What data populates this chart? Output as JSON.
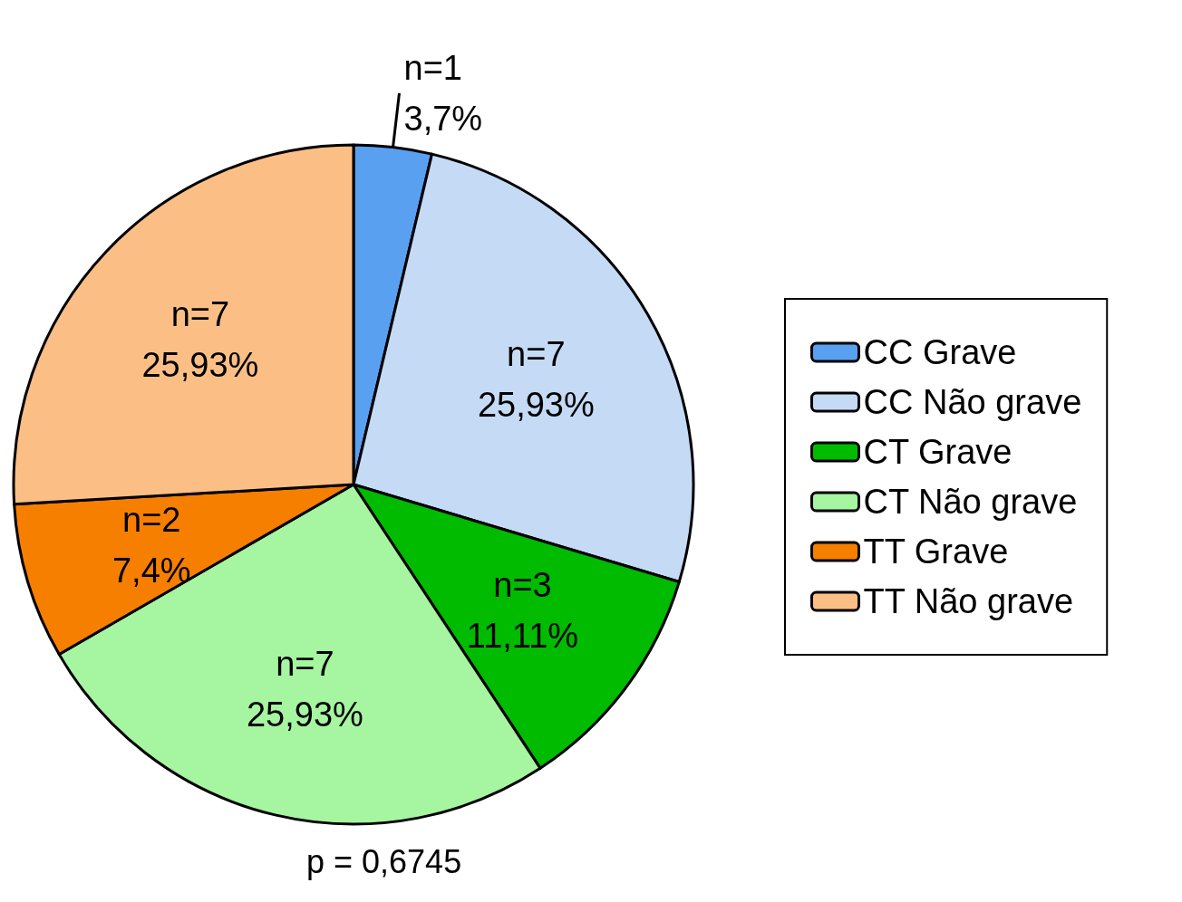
{
  "chart_data": {
    "type": "pie",
    "categories": [
      "CC Grave",
      "CC Não grave",
      "CT Grave",
      "CT Não grave",
      "TT Grave",
      "TT Não grave"
    ],
    "values": [
      1,
      7,
      3,
      7,
      2,
      7
    ],
    "colors": [
      "#5aa0f0",
      "#c5daf5",
      "#00bb00",
      "#a6f5a0",
      "#f77f00",
      "#fbbf86"
    ],
    "value_labels": [
      "n=1\n3,7%",
      "n=7\n25,93%",
      "n=3\n11,11%",
      "n=7\n25,93%",
      "n=2\n7,4%",
      "n=7\n25,93%"
    ],
    "legend": "right",
    "annotations": [
      "p = 0,6745"
    ]
  }
}
